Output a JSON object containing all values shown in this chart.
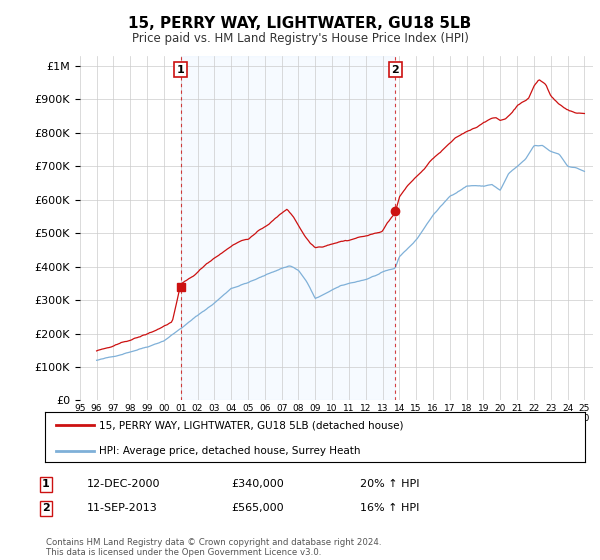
{
  "title": "15, PERRY WAY, LIGHTWATER, GU18 5LB",
  "subtitle": "Price paid vs. HM Land Registry's House Price Index (HPI)",
  "hpi_color": "#7fb0d8",
  "price_color": "#cc1111",
  "shade_color": "#ddeeff",
  "legend_line1": "15, PERRY WAY, LIGHTWATER, GU18 5LB (detached house)",
  "legend_line2": "HPI: Average price, detached house, Surrey Heath",
  "table_row1": [
    "1",
    "12-DEC-2000",
    "£340,000",
    "20% ↑ HPI"
  ],
  "table_row2": [
    "2",
    "11-SEP-2013",
    "£565,000",
    "16% ↑ HPI"
  ],
  "footnote": "Contains HM Land Registry data © Crown copyright and database right 2024.\nThis data is licensed under the Open Government Licence v3.0.",
  "bg_color": "#ffffff",
  "grid_color": "#cccccc",
  "marker1_year": 2001.0,
  "marker2_year": 2013.75,
  "marker1_price": 340000,
  "marker2_price": 565000,
  "yticks": [
    0,
    100000,
    200000,
    300000,
    400000,
    500000,
    600000,
    700000,
    800000,
    900000,
    1000000
  ],
  "ytick_labels": [
    "£0",
    "£100K",
    "£200K",
    "£300K",
    "£400K",
    "£500K",
    "£600K",
    "£700K",
    "£800K",
    "£900K",
    "£1M"
  ],
  "xlim_start": 1995.5,
  "xlim_end": 2025.5,
  "ylim": [
    0,
    1030000
  ],
  "xtick_years": [
    1995,
    1996,
    1997,
    1998,
    1999,
    2000,
    2001,
    2002,
    2003,
    2004,
    2005,
    2006,
    2007,
    2008,
    2009,
    2010,
    2011,
    2012,
    2013,
    2014,
    2015,
    2016,
    2017,
    2018,
    2019,
    2020,
    2021,
    2022,
    2023,
    2024,
    2025
  ]
}
